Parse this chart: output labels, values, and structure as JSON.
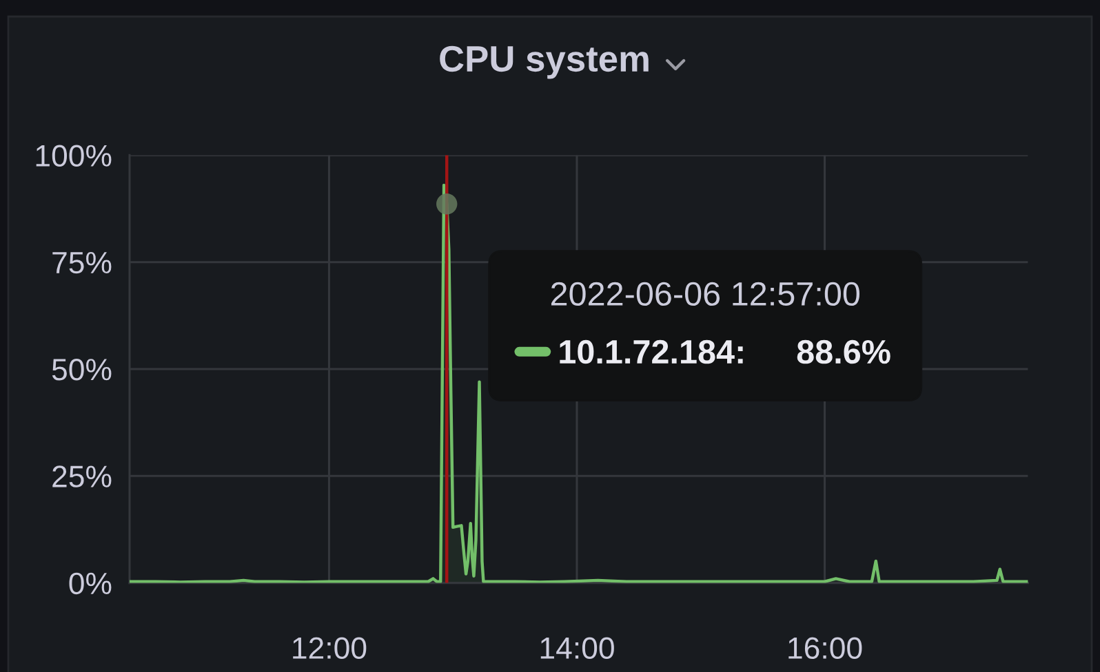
{
  "chart_data": {
    "type": "area",
    "title": "CPU system",
    "xlim": [
      10.39,
      17.64
    ],
    "ylim": [
      0,
      100
    ],
    "xticks": [
      {
        "value": 12,
        "label": "12:00"
      },
      {
        "value": 14,
        "label": "14:00"
      },
      {
        "value": 16,
        "label": "16:00"
      }
    ],
    "yticks": [
      {
        "value": 0,
        "label": "0%"
      },
      {
        "value": 25,
        "label": "25%"
      },
      {
        "value": 50,
        "label": "50%"
      },
      {
        "value": 75,
        "label": "75%"
      },
      {
        "value": 100,
        "label": "100%"
      }
    ],
    "grid": true,
    "legend": "top right",
    "legend_title": "2022-06-06 12:57:00",
    "annotations": [
      "88.6%"
    ],
    "ref_lines": [
      {
        "axis": "x",
        "value": 12.95,
        "color": "#a31515"
      }
    ],
    "series": [
      {
        "name": "10.1.72.184:",
        "color": "#73bf69",
        "x": [
          10.39,
          10.6,
          10.8,
          11.0,
          11.2,
          11.31,
          11.4,
          11.6,
          11.8,
          12.0,
          12.2,
          12.4,
          12.6,
          12.8,
          12.84,
          12.87,
          12.9,
          12.927,
          12.95,
          12.967,
          12.983,
          13.0,
          13.03,
          13.068,
          13.085,
          13.105,
          13.12,
          13.142,
          13.155,
          13.168,
          13.185,
          13.213,
          13.235,
          13.246,
          13.3,
          13.5,
          13.7,
          13.9,
          14.17,
          14.4,
          14.6,
          14.8,
          15.0,
          15.2,
          15.4,
          15.6,
          15.8,
          16.0,
          16.09,
          16.2,
          16.38,
          16.413,
          16.44,
          16.6,
          16.8,
          17.0,
          17.2,
          17.39,
          17.414,
          17.44,
          17.64
        ],
        "values": [
          0.3,
          0.3,
          0.2,
          0.3,
          0.3,
          0.6,
          0.3,
          0.3,
          0.2,
          0.3,
          0.3,
          0.3,
          0.3,
          0.3,
          1.0,
          0.3,
          0.3,
          93,
          88.6,
          78,
          45,
          13,
          13.2,
          13.4,
          8,
          2.1,
          5,
          13.9,
          6,
          1.6,
          10,
          47,
          5,
          0.3,
          0.3,
          0.3,
          0.2,
          0.3,
          0.6,
          0.3,
          0.3,
          0.3,
          0.3,
          0.3,
          0.3,
          0.3,
          0.3,
          0.3,
          1.0,
          0.3,
          0.3,
          5.1,
          0.3,
          0.3,
          0.3,
          0.3,
          0.3,
          0.6,
          3.2,
          0.3,
          0.3
        ]
      },
      {
        "type": "scatter",
        "color": "#65795e",
        "x": [
          12.95
        ],
        "values": [
          88.6
        ]
      }
    ]
  }
}
